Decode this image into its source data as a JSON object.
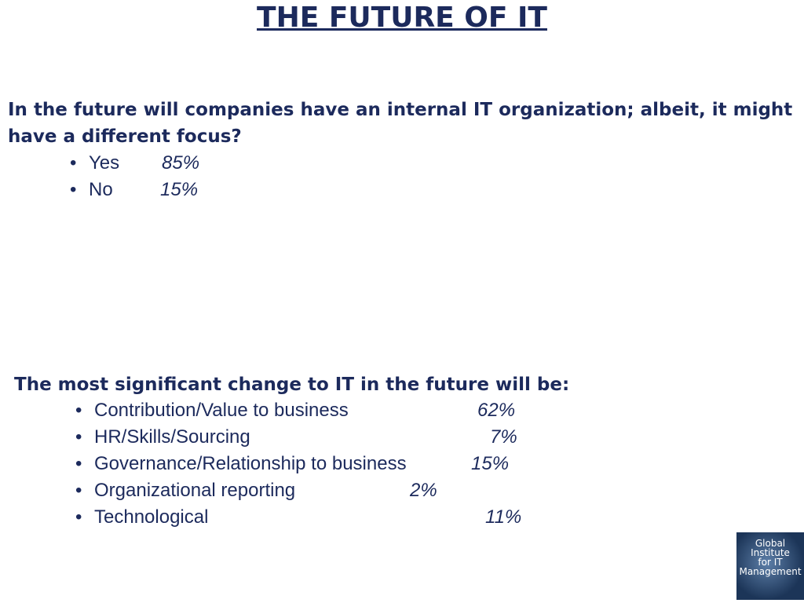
{
  "title": "THE FUTURE OF IT",
  "question1": {
    "text": "In the future will companies have an internal IT organization; albeit, it might have a different focus?",
    "items": [
      {
        "label": "Yes",
        "value": "85%"
      },
      {
        "label": "No",
        "value": "15%"
      }
    ]
  },
  "question2": {
    "text": "The most significant change to IT in the future will be:",
    "items": [
      {
        "label": "Contribution/Value to business",
        "value": "62%"
      },
      {
        "label": "HR/Skills/Sourcing",
        "value": "7%"
      },
      {
        "label": "Governance/Relationship to business",
        "value": "15%"
      },
      {
        "label": "Organizational reporting",
        "value": "2%"
      },
      {
        "label": "Technological",
        "value": "11%"
      }
    ]
  },
  "logo": {
    "lines": [
      "Global",
      "Institute",
      "for IT",
      "Management"
    ]
  }
}
